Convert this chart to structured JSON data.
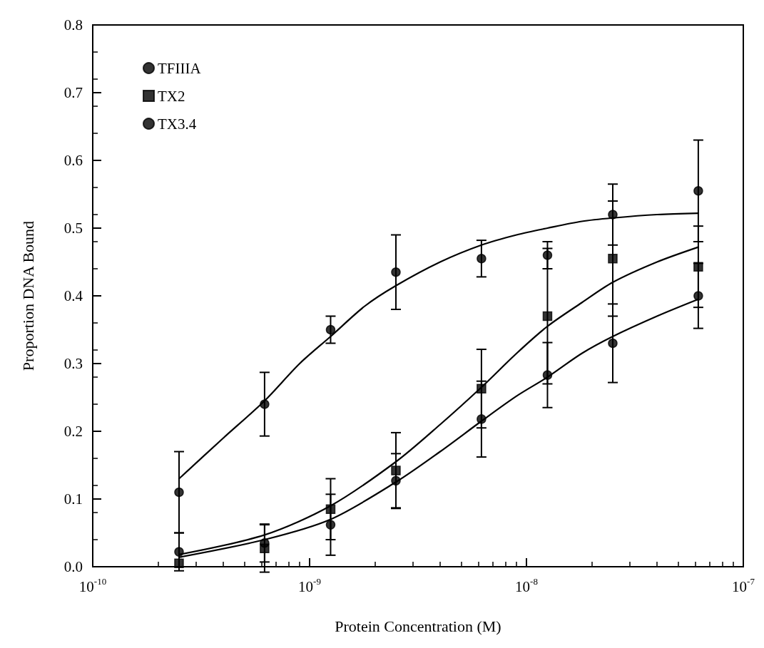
{
  "chart_data": {
    "type": "scatter",
    "xlabel": "Protein Concentration (M)",
    "ylabel": "Proportion DNA Bound",
    "log": "x",
    "xlim": [
      1e-10,
      1e-07
    ],
    "xticks": [
      {
        "value": 1e-10,
        "label": "10$^{-10}$"
      },
      {
        "value": 1e-09,
        "label": "10$^{-9}$"
      },
      {
        "value": 1e-08,
        "label": "10$^{-8}$"
      },
      {
        "value": 1e-07,
        "label": "10$^{-7}$"
      }
    ],
    "ylim": [
      0,
      0.8
    ],
    "yticks": [
      {
        "value": 0,
        "label": "0.0"
      },
      {
        "value": 0.1,
        "label": "0.1"
      },
      {
        "value": 0.2,
        "label": "0.2"
      },
      {
        "value": 0.3,
        "label": "0.3"
      },
      {
        "value": 0.4,
        "label": "0.4"
      },
      {
        "value": 0.5,
        "label": "0.5"
      },
      {
        "value": 0.6,
        "label": "0.6"
      },
      {
        "value": 0.7,
        "label": "0.7"
      },
      {
        "value": 0.8,
        "label": "0.8"
      }
    ],
    "grid": false,
    "legend": "top left",
    "x": [
      2.5e-10,
      6.2e-10,
      1.25e-09,
      2.5e-09,
      6.2e-09,
      1.25e-08,
      2.5e-08,
      6.2e-08
    ],
    "series": [
      {
        "name": "TFIIIA",
        "color": "#000000",
        "marker": "circle",
        "values": [
          0.11,
          0.24,
          0.35,
          0.435,
          0.455,
          0.46,
          0.52,
          0.555
        ],
        "errors": [
          0.06,
          0.047,
          0.02,
          0.055,
          0.027,
          0.02,
          0.045,
          0.075
        ]
      },
      {
        "name": "TX2",
        "color": "#000000",
        "marker": "square",
        "values": [
          0.005,
          0.027,
          0.085,
          0.142,
          0.263,
          0.37,
          0.455,
          0.443
        ],
        "errors": [
          null,
          0.035,
          0.045,
          0.056,
          0.058,
          0.1,
          0.085,
          0.06
        ]
      },
      {
        "name": "TX3.4",
        "color": "#000000",
        "marker": "circle",
        "values": [
          0.022,
          0.035,
          0.062,
          0.127,
          0.218,
          0.283,
          0.33,
          0.4
        ],
        "errors": [
          0.028,
          0.028,
          0.045,
          0.04,
          0.056,
          0.048,
          0.058,
          0.048
        ]
      },
      {
        "type": "line",
        "color": "#000000",
        "marker": "none",
        "x": [
          2.5e-10,
          4e-10,
          6.2e-10,
          9e-10,
          1.25e-09,
          1.8e-09,
          2.5e-09,
          4e-09,
          6.2e-09,
          9e-09,
          1.25e-08,
          1.8e-08,
          2.5e-08,
          4e-08,
          6.2e-08
        ],
        "values": [
          0.13,
          0.19,
          0.245,
          0.3,
          0.34,
          0.385,
          0.415,
          0.45,
          0.475,
          0.49,
          0.5,
          0.51,
          0.515,
          0.52,
          0.522
        ]
      },
      {
        "type": "line",
        "color": "#000000",
        "marker": "none",
        "x": [
          2.5e-10,
          6.2e-10,
          1.25e-09,
          2.5e-09,
          4e-09,
          6.2e-09,
          9e-09,
          1.25e-08,
          1.8e-08,
          2.5e-08,
          4e-08,
          6.2e-08
        ],
        "values": [
          0.018,
          0.047,
          0.09,
          0.155,
          0.21,
          0.265,
          0.315,
          0.355,
          0.39,
          0.42,
          0.45,
          0.472
        ]
      },
      {
        "type": "line",
        "color": "#000000",
        "marker": "none",
        "x": [
          2.5e-10,
          6.2e-10,
          1.25e-09,
          2.5e-09,
          4e-09,
          6.2e-09,
          9e-09,
          1.25e-08,
          1.8e-08,
          2.5e-08,
          4e-08,
          6.2e-08
        ],
        "values": [
          0.014,
          0.04,
          0.07,
          0.125,
          0.17,
          0.215,
          0.252,
          0.28,
          0.315,
          0.34,
          0.37,
          0.395
        ]
      }
    ]
  }
}
